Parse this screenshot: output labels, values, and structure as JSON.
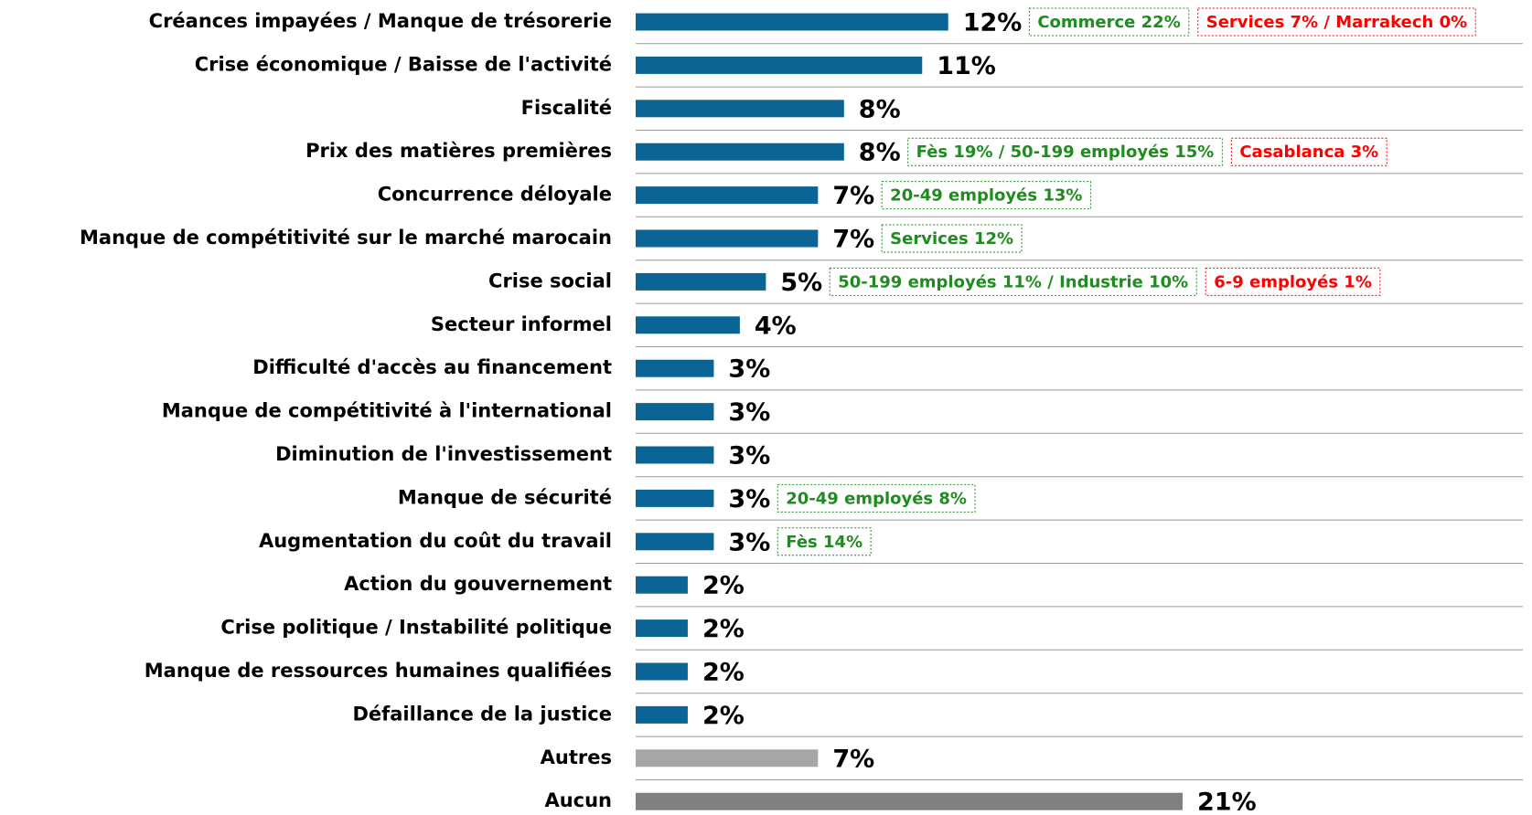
{
  "chart_data": {
    "type": "bar",
    "orientation": "horizontal",
    "categories": [
      "Créances impayées / Manque de trésorerie",
      "Crise économique / Baisse de l'activité",
      "Fiscalité",
      "Prix des matières premières",
      "Concurrence déloyale",
      "Manque de compétitivité sur le marché marocain",
      "Crise social",
      "Secteur informel",
      "Difficulté d'accès au financement",
      "Manque de compétitivité à l'international",
      "Diminution de l'investissement",
      "Manque de sécurité",
      "Augmentation du coût du travail",
      "Action du gouvernement",
      "Crise politique / Instabilité politique",
      "Manque de ressources humaines qualifiées",
      "Défaillance de la justice",
      "Autres",
      "Aucun"
    ],
    "values": [
      12,
      11,
      8,
      8,
      7,
      7,
      5,
      4,
      3,
      3,
      3,
      3,
      3,
      2,
      2,
      2,
      2,
      7,
      21
    ],
    "value_labels": [
      "12%",
      "11%",
      "8%",
      "8%",
      "7%",
      "7%",
      "5%",
      "4%",
      "3%",
      "3%",
      "3%",
      "3%",
      "3%",
      "2%",
      "2%",
      "2%",
      "2%",
      "7%",
      "21%"
    ],
    "colors": [
      "#0b6496",
      "#0b6496",
      "#0b6496",
      "#0b6496",
      "#0b6496",
      "#0b6496",
      "#0b6496",
      "#0b6496",
      "#0b6496",
      "#0b6496",
      "#0b6496",
      "#0b6496",
      "#0b6496",
      "#0b6496",
      "#0b6496",
      "#0b6496",
      "#0b6496",
      "#a6a6a6",
      "#808080"
    ],
    "positive_notes": [
      "Commerce 22%",
      null,
      null,
      "Fès 19% / 50-199 employés 15%",
      "20-49 employés 13%",
      "Services 12%",
      "50-199 employés 11% / Industrie 10%",
      null,
      null,
      null,
      null,
      "20-49 employés 8%",
      "Fès 14%",
      null,
      null,
      null,
      null,
      null,
      null
    ],
    "negative_notes": [
      "Services 7% / Marrakech 0%",
      null,
      null,
      "Casablanca 3%",
      null,
      null,
      "6-9 employés 1%",
      null,
      null,
      null,
      null,
      null,
      null,
      null,
      null,
      null,
      null,
      null,
      null
    ],
    "positive_color": "#1e8c1e",
    "negative_color": "#ff0000"
  }
}
